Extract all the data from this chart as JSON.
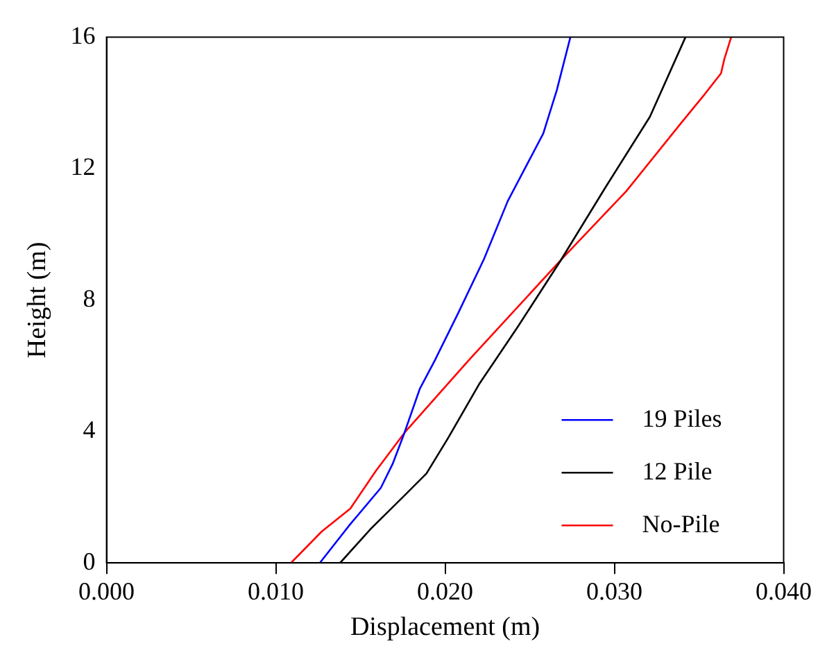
{
  "chart_data": {
    "type": "line",
    "xlabel": "Displacement (m)",
    "ylabel": "Height (m)",
    "xlim": [
      0,
      0.04
    ],
    "xticks": [
      {
        "value": 0,
        "label": "0.000"
      },
      {
        "value": 0.01,
        "label": "0.010"
      },
      {
        "value": 0.02,
        "label": "0.020"
      },
      {
        "value": 0.03,
        "label": "0.030"
      },
      {
        "value": 0.04,
        "label": "0.040"
      }
    ],
    "ylim": [
      0,
      16
    ],
    "yticks": [
      0,
      4,
      8,
      12,
      16
    ],
    "grid": false,
    "legend": "bottom right",
    "marker": "none",
    "line_style": "solid",
    "series": [
      {
        "name": "19 Piles",
        "color": "#0000ff",
        "x": [
          0.0126,
          0.0144,
          0.0162,
          0.0169,
          0.0176,
          0.0185,
          0.0194,
          0.0208,
          0.0223,
          0.0237,
          0.0258,
          0.0266,
          0.0274
        ],
        "values": [
          0,
          1.18,
          2.28,
          3.01,
          3.96,
          5.29,
          6.17,
          7.63,
          9.25,
          11.01,
          13.07,
          14.39,
          16
        ]
      },
      {
        "name": "12 Pile",
        "color": "#000000",
        "x": [
          0.0138,
          0.0156,
          0.0176,
          0.0189,
          0.0202,
          0.022,
          0.0243,
          0.0268,
          0.0295,
          0.0321,
          0.0342
        ],
        "values": [
          0,
          1.03,
          2.05,
          2.72,
          3.82,
          5.43,
          7.19,
          9.18,
          11.45,
          13.58,
          16
        ]
      },
      {
        "name": "No-Pile",
        "color": "#ff0000",
        "x": [
          0.0109,
          0.0127,
          0.0144,
          0.0159,
          0.0176,
          0.0214,
          0.0269,
          0.0307,
          0.0339,
          0.0353,
          0.0363,
          0.0365,
          0.0369
        ],
        "values": [
          0,
          0.95,
          1.65,
          2.79,
          3.96,
          6.17,
          9.25,
          11.31,
          13.36,
          14.24,
          14.9,
          15.34,
          16
        ]
      }
    ]
  }
}
